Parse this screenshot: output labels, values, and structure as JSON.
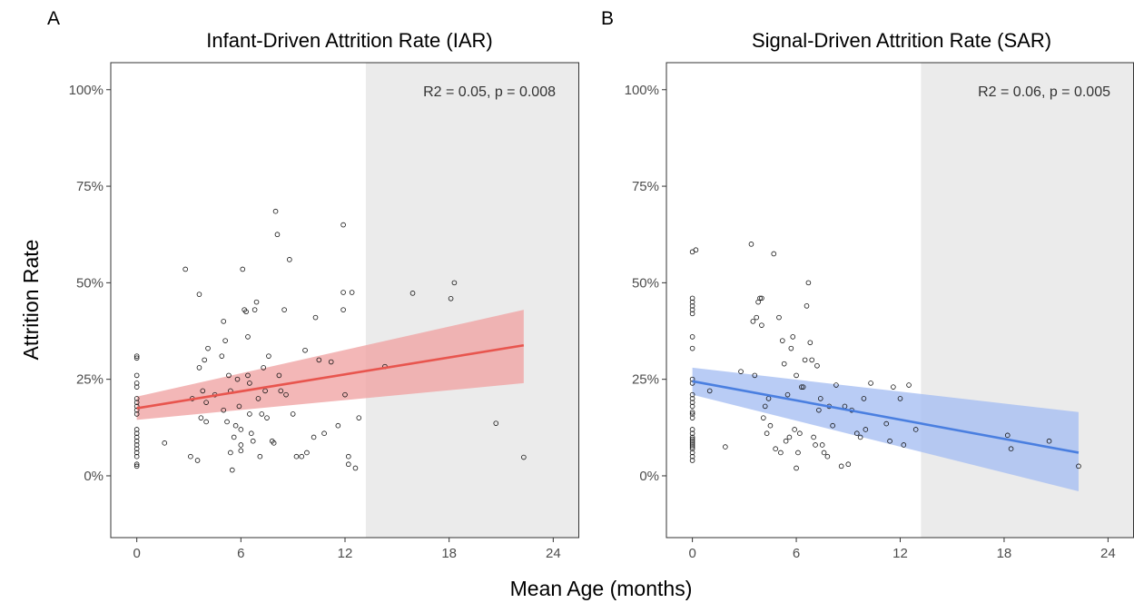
{
  "figure": {
    "xlabel": "Mean Age (months)",
    "ylabel": "Attrition Rate"
  },
  "chart_data": [
    {
      "panel": "A",
      "type": "scatter",
      "title": "Infant-Driven Attrition Rate (IAR)",
      "xlim": [
        -1.5,
        25.5
      ],
      "ylim": [
        -0.16,
        1.07
      ],
      "xticks": [
        0,
        6,
        12,
        18,
        24
      ],
      "xtick_labels": [
        "0",
        "6",
        "12",
        "18",
        "24"
      ],
      "yticks": [
        0,
        0.25,
        0.5,
        0.75,
        1.0
      ],
      "ytick_labels": [
        "0%",
        "25%",
        "50%",
        "75%",
        "100%"
      ],
      "shaded_region_x": [
        13.2,
        25.5
      ],
      "annotation": "R2 = 0.05, p = 0.008",
      "fit": {
        "x": [
          0,
          22.3
        ],
        "y": [
          0.175,
          0.338
        ],
        "ci_lower": [
          0.145,
          0.24
        ],
        "ci_upper": [
          0.205,
          0.43
        ],
        "color": "#e8554e",
        "band_color": "#f0a5a5"
      },
      "points": [
        [
          0,
          0.31
        ],
        [
          0,
          0.305
        ],
        [
          0,
          0.26
        ],
        [
          0,
          0.24
        ],
        [
          0,
          0.23
        ],
        [
          0,
          0.2
        ],
        [
          0,
          0.19
        ],
        [
          0,
          0.18
        ],
        [
          0,
          0.17
        ],
        [
          0,
          0.16
        ],
        [
          0,
          0.12
        ],
        [
          0,
          0.11
        ],
        [
          0,
          0.1
        ],
        [
          0,
          0.09
        ],
        [
          0,
          0.08
        ],
        [
          0,
          0.07
        ],
        [
          0,
          0.06
        ],
        [
          0,
          0.05
        ],
        [
          0,
          0.03
        ],
        [
          0,
          0.025
        ],
        [
          1.6,
          0.085
        ],
        [
          2.8,
          0.535
        ],
        [
          3.1,
          0.05
        ],
        [
          3.2,
          0.2
        ],
        [
          3.5,
          0.04
        ],
        [
          3.6,
          0.47
        ],
        [
          3.6,
          0.28
        ],
        [
          3.7,
          0.15
        ],
        [
          3.8,
          0.22
        ],
        [
          3.9,
          0.3
        ],
        [
          4.0,
          0.19
        ],
        [
          4.0,
          0.14
        ],
        [
          4.1,
          0.33
        ],
        [
          4.5,
          0.21
        ],
        [
          4.9,
          0.31
        ],
        [
          5.0,
          0.17
        ],
        [
          5.0,
          0.4
        ],
        [
          5.1,
          0.35
        ],
        [
          5.2,
          0.14
        ],
        [
          5.3,
          0.26
        ],
        [
          5.4,
          0.22
        ],
        [
          5.4,
          0.06
        ],
        [
          5.5,
          0.015
        ],
        [
          5.6,
          0.1
        ],
        [
          5.7,
          0.13
        ],
        [
          5.8,
          0.25
        ],
        [
          5.9,
          0.18
        ],
        [
          6.0,
          0.08
        ],
        [
          6.0,
          0.065
        ],
        [
          6.0,
          0.12
        ],
        [
          6.1,
          0.535
        ],
        [
          6.2,
          0.43
        ],
        [
          6.3,
          0.425
        ],
        [
          6.4,
          0.36
        ],
        [
          6.4,
          0.26
        ],
        [
          6.5,
          0.24
        ],
        [
          6.5,
          0.16
        ],
        [
          6.6,
          0.11
        ],
        [
          6.7,
          0.09
        ],
        [
          6.8,
          0.43
        ],
        [
          6.9,
          0.45
        ],
        [
          7.0,
          0.2
        ],
        [
          7.1,
          0.05
        ],
        [
          7.2,
          0.16
        ],
        [
          7.3,
          0.28
        ],
        [
          7.4,
          0.22
        ],
        [
          7.5,
          0.15
        ],
        [
          7.6,
          0.31
        ],
        [
          7.8,
          0.09
        ],
        [
          7.9,
          0.085
        ],
        [
          8.0,
          0.685
        ],
        [
          8.1,
          0.625
        ],
        [
          8.2,
          0.26
        ],
        [
          8.3,
          0.22
        ],
        [
          8.5,
          0.43
        ],
        [
          8.6,
          0.21
        ],
        [
          8.8,
          0.56
        ],
        [
          9.0,
          0.16
        ],
        [
          9.2,
          0.05
        ],
        [
          9.5,
          0.05
        ],
        [
          9.7,
          0.325
        ],
        [
          9.8,
          0.06
        ],
        [
          10.2,
          0.1
        ],
        [
          10.3,
          0.41
        ],
        [
          10.5,
          0.3
        ],
        [
          10.8,
          0.11
        ],
        [
          11.2,
          0.295
        ],
        [
          11.6,
          0.13
        ],
        [
          11.9,
          0.65
        ],
        [
          11.9,
          0.475
        ],
        [
          11.9,
          0.43
        ],
        [
          12.0,
          0.21
        ],
        [
          12.4,
          0.475
        ],
        [
          12.2,
          0.05
        ],
        [
          12.6,
          0.02
        ],
        [
          12.8,
          0.15
        ],
        [
          12.2,
          0.03
        ],
        [
          14.3,
          0.283
        ],
        [
          15.9,
          0.473
        ],
        [
          18.1,
          0.459
        ],
        [
          18.3,
          0.5
        ],
        [
          20.7,
          0.136
        ],
        [
          22.3,
          0.048
        ]
      ]
    },
    {
      "panel": "B",
      "type": "scatter",
      "title": "Signal-Driven Attrition Rate (SAR)",
      "xlim": [
        -1.5,
        25.5
      ],
      "ylim": [
        -0.16,
        1.07
      ],
      "xticks": [
        0,
        6,
        12,
        18,
        24
      ],
      "xtick_labels": [
        "0",
        "6",
        "12",
        "18",
        "24"
      ],
      "yticks": [
        0,
        0.25,
        0.5,
        0.75,
        1.0
      ],
      "ytick_labels": [
        "0%",
        "25%",
        "50%",
        "75%",
        "100%"
      ],
      "shaded_region_x": [
        13.2,
        25.5
      ],
      "annotation": "R2 = 0.06, p = 0.005",
      "fit": {
        "x": [
          0,
          22.3
        ],
        "y": [
          0.245,
          0.06
        ],
        "ci_lower": [
          0.21,
          -0.04
        ],
        "ci_upper": [
          0.28,
          0.165
        ],
        "color": "#4a7fe0",
        "band_color": "#a8bff2"
      },
      "points": [
        [
          0,
          0.58
        ],
        [
          0.2,
          0.585
        ],
        [
          0,
          0.46
        ],
        [
          0,
          0.45
        ],
        [
          0,
          0.44
        ],
        [
          0,
          0.43
        ],
        [
          0,
          0.42
        ],
        [
          0,
          0.36
        ],
        [
          0,
          0.33
        ],
        [
          0,
          0.25
        ],
        [
          0,
          0.24
        ],
        [
          0,
          0.21
        ],
        [
          0,
          0.2
        ],
        [
          0,
          0.19
        ],
        [
          0,
          0.18
        ],
        [
          0,
          0.165
        ],
        [
          0,
          0.16
        ],
        [
          0,
          0.15
        ],
        [
          0,
          0.12
        ],
        [
          0,
          0.11
        ],
        [
          0,
          0.1
        ],
        [
          0,
          0.095
        ],
        [
          0,
          0.09
        ],
        [
          0,
          0.085
        ],
        [
          0,
          0.08
        ],
        [
          0,
          0.075
        ],
        [
          0,
          0.07
        ],
        [
          0,
          0.06
        ],
        [
          0,
          0.05
        ],
        [
          0,
          0.04
        ],
        [
          1.0,
          0.22
        ],
        [
          1.9,
          0.075
        ],
        [
          2.8,
          0.27
        ],
        [
          3.4,
          0.6
        ],
        [
          3.5,
          0.4
        ],
        [
          3.6,
          0.26
        ],
        [
          3.7,
          0.41
        ],
        [
          3.8,
          0.45
        ],
        [
          3.9,
          0.46
        ],
        [
          4.0,
          0.46
        ],
        [
          4.0,
          0.39
        ],
        [
          4.1,
          0.15
        ],
        [
          4.2,
          0.18
        ],
        [
          4.3,
          0.11
        ],
        [
          4.4,
          0.2
        ],
        [
          4.5,
          0.13
        ],
        [
          4.7,
          0.575
        ],
        [
          4.8,
          0.07
        ],
        [
          5.0,
          0.41
        ],
        [
          5.1,
          0.06
        ],
        [
          5.2,
          0.35
        ],
        [
          5.3,
          0.29
        ],
        [
          5.4,
          0.09
        ],
        [
          5.5,
          0.21
        ],
        [
          5.6,
          0.1
        ],
        [
          5.7,
          0.33
        ],
        [
          5.8,
          0.36
        ],
        [
          5.9,
          0.12
        ],
        [
          6.0,
          0.26
        ],
        [
          6.0,
          0.02
        ],
        [
          6.1,
          0.06
        ],
        [
          6.2,
          0.11
        ],
        [
          6.3,
          0.23
        ],
        [
          6.4,
          0.23
        ],
        [
          6.5,
          0.3
        ],
        [
          6.6,
          0.44
        ],
        [
          6.7,
          0.5
        ],
        [
          6.8,
          0.345
        ],
        [
          6.9,
          0.3
        ],
        [
          7.0,
          0.1
        ],
        [
          7.1,
          0.08
        ],
        [
          7.2,
          0.285
        ],
        [
          7.3,
          0.17
        ],
        [
          7.4,
          0.2
        ],
        [
          7.5,
          0.08
        ],
        [
          7.6,
          0.06
        ],
        [
          7.8,
          0.05
        ],
        [
          7.9,
          0.18
        ],
        [
          8.1,
          0.13
        ],
        [
          8.3,
          0.235
        ],
        [
          8.6,
          0.025
        ],
        [
          8.8,
          0.18
        ],
        [
          9.0,
          0.03
        ],
        [
          9.2,
          0.17
        ],
        [
          9.5,
          0.11
        ],
        [
          9.7,
          0.1
        ],
        [
          9.9,
          0.2
        ],
        [
          10.0,
          0.12
        ],
        [
          10.3,
          0.24
        ],
        [
          11.2,
          0.135
        ],
        [
          11.4,
          0.09
        ],
        [
          11.6,
          0.23
        ],
        [
          12.0,
          0.2
        ],
        [
          12.2,
          0.08
        ],
        [
          12.5,
          0.235
        ],
        [
          12.9,
          0.12
        ],
        [
          18.2,
          0.105
        ],
        [
          18.4,
          0.07
        ],
        [
          20.6,
          0.09
        ],
        [
          22.3,
          0.025
        ]
      ]
    }
  ]
}
